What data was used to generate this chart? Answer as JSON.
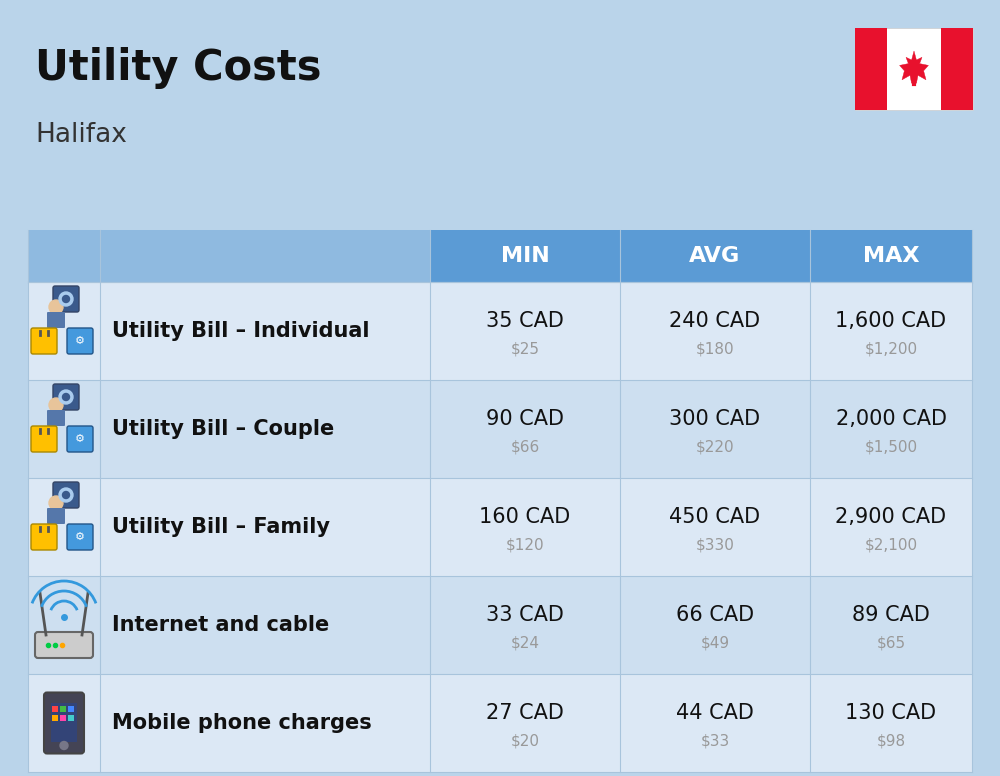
{
  "title": "Utility Costs",
  "subtitle": "Halifax",
  "background_color": "#bad4ea",
  "header_color": "#5b9bd5",
  "header_text_color": "#ffffff",
  "row_colors": [
    "#dce8f5",
    "#cddff0"
  ],
  "text_color_main": "#111111",
  "text_color_sub": "#999999",
  "text_color_label": "#111111",
  "border_color": "#a8c4dc",
  "headers": [
    "MIN",
    "AVG",
    "MAX"
  ],
  "rows": [
    {
      "label": "Utility Bill – Individual",
      "min_cad": "35 CAD",
      "min_usd": "$25",
      "avg_cad": "240 CAD",
      "avg_usd": "$180",
      "max_cad": "1,600 CAD",
      "max_usd": "$1,200",
      "icon": "utility"
    },
    {
      "label": "Utility Bill – Couple",
      "min_cad": "90 CAD",
      "min_usd": "$66",
      "avg_cad": "300 CAD",
      "avg_usd": "$220",
      "max_cad": "2,000 CAD",
      "max_usd": "$1,500",
      "icon": "utility"
    },
    {
      "label": "Utility Bill – Family",
      "min_cad": "160 CAD",
      "min_usd": "$120",
      "avg_cad": "450 CAD",
      "avg_usd": "$330",
      "max_cad": "2,900 CAD",
      "max_usd": "$2,100",
      "icon": "utility"
    },
    {
      "label": "Internet and cable",
      "min_cad": "33 CAD",
      "min_usd": "$24",
      "avg_cad": "66 CAD",
      "avg_usd": "$49",
      "max_cad": "89 CAD",
      "max_usd": "$65",
      "icon": "internet"
    },
    {
      "label": "Mobile phone charges",
      "min_cad": "27 CAD",
      "min_usd": "$20",
      "avg_cad": "44 CAD",
      "avg_usd": "$33",
      "max_cad": "130 CAD",
      "max_usd": "$98",
      "icon": "mobile"
    }
  ],
  "title_fontsize": 30,
  "subtitle_fontsize": 19,
  "header_fontsize": 16,
  "label_fontsize": 15,
  "value_fontsize": 15,
  "sub_value_fontsize": 11,
  "flag_red": "#e8112d"
}
